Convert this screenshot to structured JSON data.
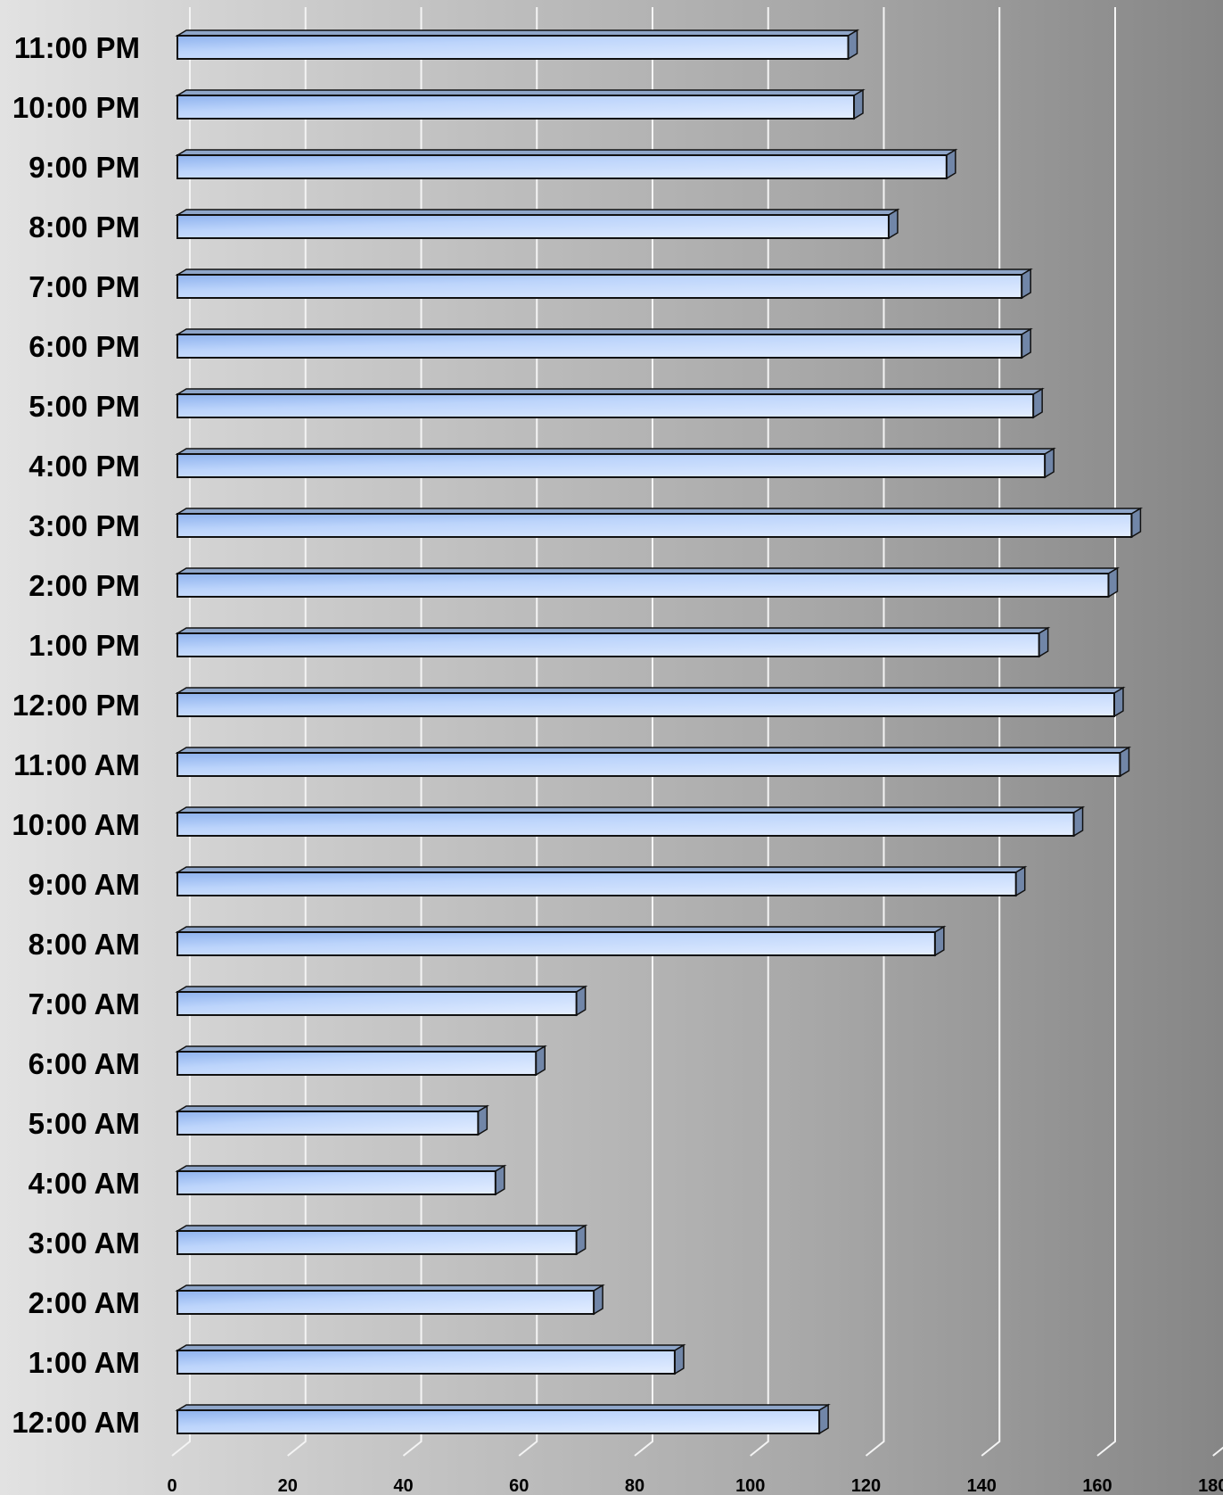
{
  "chart_data": {
    "type": "bar",
    "orientation": "horizontal",
    "style": "3d",
    "categories": [
      "12:00 AM",
      "1:00 AM",
      "2:00 AM",
      "3:00 AM",
      "4:00 AM",
      "5:00 AM",
      "6:00 AM",
      "7:00 AM",
      "8:00 AM",
      "9:00 AM",
      "10:00 AM",
      "11:00 AM",
      "12:00 PM",
      "1:00 PM",
      "2:00 PM",
      "3:00 PM",
      "4:00 PM",
      "5:00 PM",
      "6:00 PM",
      "7:00 PM",
      "8:00 PM",
      "9:00 PM",
      "10:00 PM",
      "11:00 PM"
    ],
    "values": [
      111,
      86,
      72,
      69,
      55,
      52,
      62,
      69,
      131,
      145,
      155,
      163,
      162,
      149,
      161,
      165,
      150,
      148,
      146,
      146,
      123,
      133,
      117,
      116
    ],
    "title": "",
    "xlabel": "",
    "ylabel": "",
    "xlim": [
      0,
      180
    ],
    "ticks": [
      "0",
      "20",
      "40",
      "60",
      "80",
      "100",
      "120",
      "140",
      "160",
      "180"
    ],
    "grid": true,
    "legend": "none",
    "colors": {
      "bar_light": "#e4eeff",
      "bar_mid": "#bcd4fb",
      "bar_dark": "#8eb2ee",
      "bar_top": "#8fa6c9",
      "bar_side": "#7186a8",
      "outline": "#111111",
      "gridline": "#f4f4f4"
    }
  }
}
